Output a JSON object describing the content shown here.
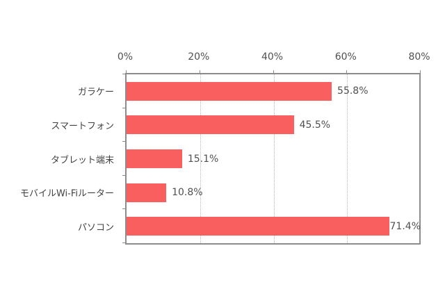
{
  "chart_data": {
    "type": "bar",
    "orientation": "horizontal",
    "title": "",
    "xlabel": "",
    "ylabel": "",
    "categories": [
      "ガラケー",
      "スマートフォン",
      "タブレット端末",
      "モバイルWi-Fiルーター",
      "パソコン"
    ],
    "values": [
      55.8,
      45.5,
      15.1,
      10.8,
      71.4
    ],
    "value_labels": [
      "55.8%",
      "45.5%",
      "15.1%",
      "10.8%",
      "71.4%"
    ],
    "xlim": [
      0,
      80
    ],
    "xticks": [
      "0%",
      "20%",
      "40%",
      "60%",
      "80%"
    ],
    "axis_position": "top",
    "grid": "vertical dotted",
    "legend": "none",
    "bar_color": "#fa5f5f"
  },
  "axis": {
    "ticks": [
      "0%",
      "20%",
      "40%",
      "60%",
      "80%"
    ]
  },
  "bars": [
    {
      "label": "ガラケー",
      "value": 55.8,
      "text": "55.8%"
    },
    {
      "label": "スマートフォン",
      "value": 45.5,
      "text": "45.5%"
    },
    {
      "label": "タブレット端末",
      "value": 15.1,
      "text": "15.1%"
    },
    {
      "label": "モバイルWi-Fiルーター",
      "value": 10.8,
      "text": "10.8%"
    },
    {
      "label": "パソコン",
      "value": 71.4,
      "text": "71.4%"
    }
  ]
}
